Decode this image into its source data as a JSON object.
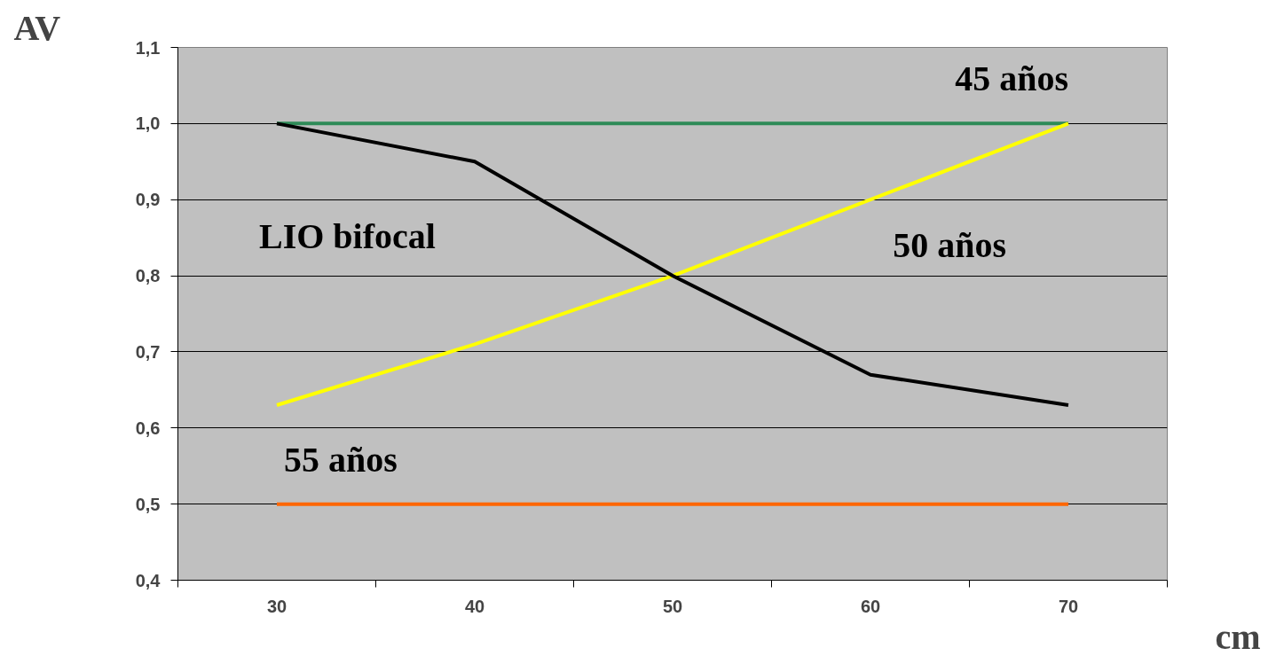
{
  "chart_data": {
    "type": "line",
    "xlabel": "cm",
    "ylabel": "AV",
    "categories": [
      "30",
      "40",
      "50",
      "60",
      "70"
    ],
    "ylim": [
      0.4,
      1.1
    ],
    "yticks": [
      {
        "value": 0.4,
        "label": "0,4"
      },
      {
        "value": 0.5,
        "label": "0,5"
      },
      {
        "value": 0.6,
        "label": "0,6"
      },
      {
        "value": 0.7,
        "label": "0,7"
      },
      {
        "value": 0.8,
        "label": "0,8"
      },
      {
        "value": 0.9,
        "label": "0,9"
      },
      {
        "value": 1.0,
        "label": "1,0"
      },
      {
        "value": 1.1,
        "label": "1,1"
      }
    ],
    "grid": "y",
    "marker": "none",
    "line_style": "solid",
    "series": [
      {
        "name": "45 años",
        "color": "#2e8b57",
        "values": [
          1.0,
          1.0,
          1.0,
          1.0,
          1.0
        ]
      },
      {
        "name": "50 años",
        "color": "#ffff00",
        "values": [
          0.63,
          0.71,
          0.8,
          0.9,
          1.0
        ]
      },
      {
        "name": "LIO bifocal",
        "color": "#000000",
        "values": [
          1.0,
          0.95,
          0.8,
          0.67,
          0.63
        ]
      },
      {
        "name": "55 años",
        "color": "#ff6600",
        "values": [
          0.5,
          0.5,
          0.5,
          0.5,
          0.5
        ]
      }
    ]
  }
}
